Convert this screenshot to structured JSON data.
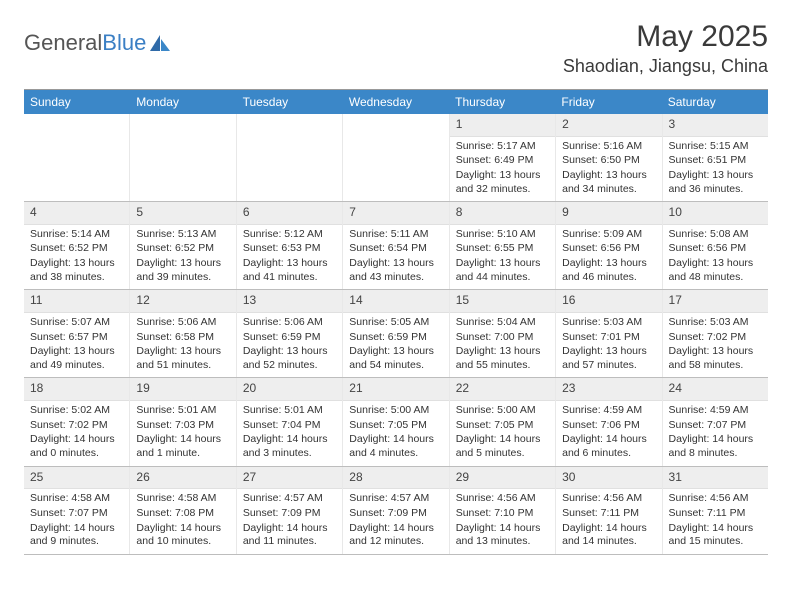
{
  "brand": {
    "name_gray": "General",
    "name_blue": "Blue"
  },
  "title": {
    "month": "May 2025",
    "location": "Shaodian, Jiangsu, China"
  },
  "colors": {
    "header_blue": "#3b87c8",
    "daynum_bg": "#eeeeee",
    "text": "#333333",
    "border": "#bdbdbd"
  },
  "dow": [
    "Sunday",
    "Monday",
    "Tuesday",
    "Wednesday",
    "Thursday",
    "Friday",
    "Saturday"
  ],
  "labels": {
    "sunrise": "Sunrise:",
    "sunset": "Sunset:",
    "daylight": "Daylight:"
  },
  "weeks": [
    [
      {
        "n": "",
        "empty": true
      },
      {
        "n": "",
        "empty": true
      },
      {
        "n": "",
        "empty": true
      },
      {
        "n": "",
        "empty": true
      },
      {
        "n": "1",
        "sunrise": "5:17 AM",
        "sunset": "6:49 PM",
        "daylight": "13 hours and 32 minutes."
      },
      {
        "n": "2",
        "sunrise": "5:16 AM",
        "sunset": "6:50 PM",
        "daylight": "13 hours and 34 minutes."
      },
      {
        "n": "3",
        "sunrise": "5:15 AM",
        "sunset": "6:51 PM",
        "daylight": "13 hours and 36 minutes."
      }
    ],
    [
      {
        "n": "4",
        "sunrise": "5:14 AM",
        "sunset": "6:52 PM",
        "daylight": "13 hours and 38 minutes."
      },
      {
        "n": "5",
        "sunrise": "5:13 AM",
        "sunset": "6:52 PM",
        "daylight": "13 hours and 39 minutes."
      },
      {
        "n": "6",
        "sunrise": "5:12 AM",
        "sunset": "6:53 PM",
        "daylight": "13 hours and 41 minutes."
      },
      {
        "n": "7",
        "sunrise": "5:11 AM",
        "sunset": "6:54 PM",
        "daylight": "13 hours and 43 minutes."
      },
      {
        "n": "8",
        "sunrise": "5:10 AM",
        "sunset": "6:55 PM",
        "daylight": "13 hours and 44 minutes."
      },
      {
        "n": "9",
        "sunrise": "5:09 AM",
        "sunset": "6:56 PM",
        "daylight": "13 hours and 46 minutes."
      },
      {
        "n": "10",
        "sunrise": "5:08 AM",
        "sunset": "6:56 PM",
        "daylight": "13 hours and 48 minutes."
      }
    ],
    [
      {
        "n": "11",
        "sunrise": "5:07 AM",
        "sunset": "6:57 PM",
        "daylight": "13 hours and 49 minutes."
      },
      {
        "n": "12",
        "sunrise": "5:06 AM",
        "sunset": "6:58 PM",
        "daylight": "13 hours and 51 minutes."
      },
      {
        "n": "13",
        "sunrise": "5:06 AM",
        "sunset": "6:59 PM",
        "daylight": "13 hours and 52 minutes."
      },
      {
        "n": "14",
        "sunrise": "5:05 AM",
        "sunset": "6:59 PM",
        "daylight": "13 hours and 54 minutes."
      },
      {
        "n": "15",
        "sunrise": "5:04 AM",
        "sunset": "7:00 PM",
        "daylight": "13 hours and 55 minutes."
      },
      {
        "n": "16",
        "sunrise": "5:03 AM",
        "sunset": "7:01 PM",
        "daylight": "13 hours and 57 minutes."
      },
      {
        "n": "17",
        "sunrise": "5:03 AM",
        "sunset": "7:02 PM",
        "daylight": "13 hours and 58 minutes."
      }
    ],
    [
      {
        "n": "18",
        "sunrise": "5:02 AM",
        "sunset": "7:02 PM",
        "daylight": "14 hours and 0 minutes."
      },
      {
        "n": "19",
        "sunrise": "5:01 AM",
        "sunset": "7:03 PM",
        "daylight": "14 hours and 1 minute."
      },
      {
        "n": "20",
        "sunrise": "5:01 AM",
        "sunset": "7:04 PM",
        "daylight": "14 hours and 3 minutes."
      },
      {
        "n": "21",
        "sunrise": "5:00 AM",
        "sunset": "7:05 PM",
        "daylight": "14 hours and 4 minutes."
      },
      {
        "n": "22",
        "sunrise": "5:00 AM",
        "sunset": "7:05 PM",
        "daylight": "14 hours and 5 minutes."
      },
      {
        "n": "23",
        "sunrise": "4:59 AM",
        "sunset": "7:06 PM",
        "daylight": "14 hours and 6 minutes."
      },
      {
        "n": "24",
        "sunrise": "4:59 AM",
        "sunset": "7:07 PM",
        "daylight": "14 hours and 8 minutes."
      }
    ],
    [
      {
        "n": "25",
        "sunrise": "4:58 AM",
        "sunset": "7:07 PM",
        "daylight": "14 hours and 9 minutes."
      },
      {
        "n": "26",
        "sunrise": "4:58 AM",
        "sunset": "7:08 PM",
        "daylight": "14 hours and 10 minutes."
      },
      {
        "n": "27",
        "sunrise": "4:57 AM",
        "sunset": "7:09 PM",
        "daylight": "14 hours and 11 minutes."
      },
      {
        "n": "28",
        "sunrise": "4:57 AM",
        "sunset": "7:09 PM",
        "daylight": "14 hours and 12 minutes."
      },
      {
        "n": "29",
        "sunrise": "4:56 AM",
        "sunset": "7:10 PM",
        "daylight": "14 hours and 13 minutes."
      },
      {
        "n": "30",
        "sunrise": "4:56 AM",
        "sunset": "7:11 PM",
        "daylight": "14 hours and 14 minutes."
      },
      {
        "n": "31",
        "sunrise": "4:56 AM",
        "sunset": "7:11 PM",
        "daylight": "14 hours and 15 minutes."
      }
    ]
  ]
}
